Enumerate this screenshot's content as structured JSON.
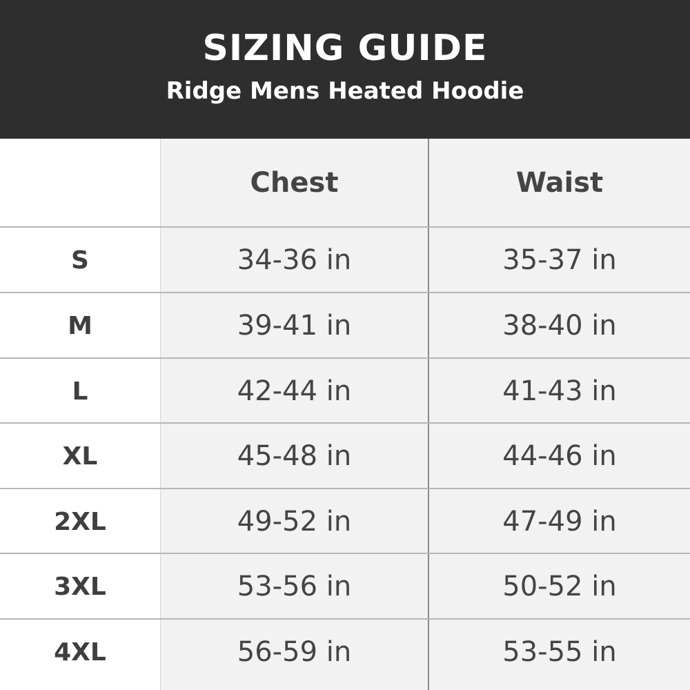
{
  "header": {
    "title": "SIZING GUIDE",
    "subtitle": "Ridge Mens Heated Hoodie"
  },
  "table": {
    "columns": [
      "",
      "Chest",
      "Waist"
    ],
    "rows": [
      {
        "size": "S",
        "chest": "34-36 in",
        "waist": "35-37 in"
      },
      {
        "size": "M",
        "chest": "39-41 in",
        "waist": "38-40 in"
      },
      {
        "size": "L",
        "chest": "42-44 in",
        "waist": "41-43 in"
      },
      {
        "size": "XL",
        "chest": "45-48 in",
        "waist": "44-46 in"
      },
      {
        "size": "2XL",
        "chest": "49-52 in",
        "waist": "47-49 in"
      },
      {
        "size": "3XL",
        "chest": "53-56 in",
        "waist": "50-52 in"
      },
      {
        "size": "4XL",
        "chest": "56-59 in",
        "waist": "53-55 in"
      }
    ]
  },
  "colors": {
    "header_bg": "#2f2e2e",
    "cell_bg": "#f2f2f2",
    "text": "#444444"
  }
}
